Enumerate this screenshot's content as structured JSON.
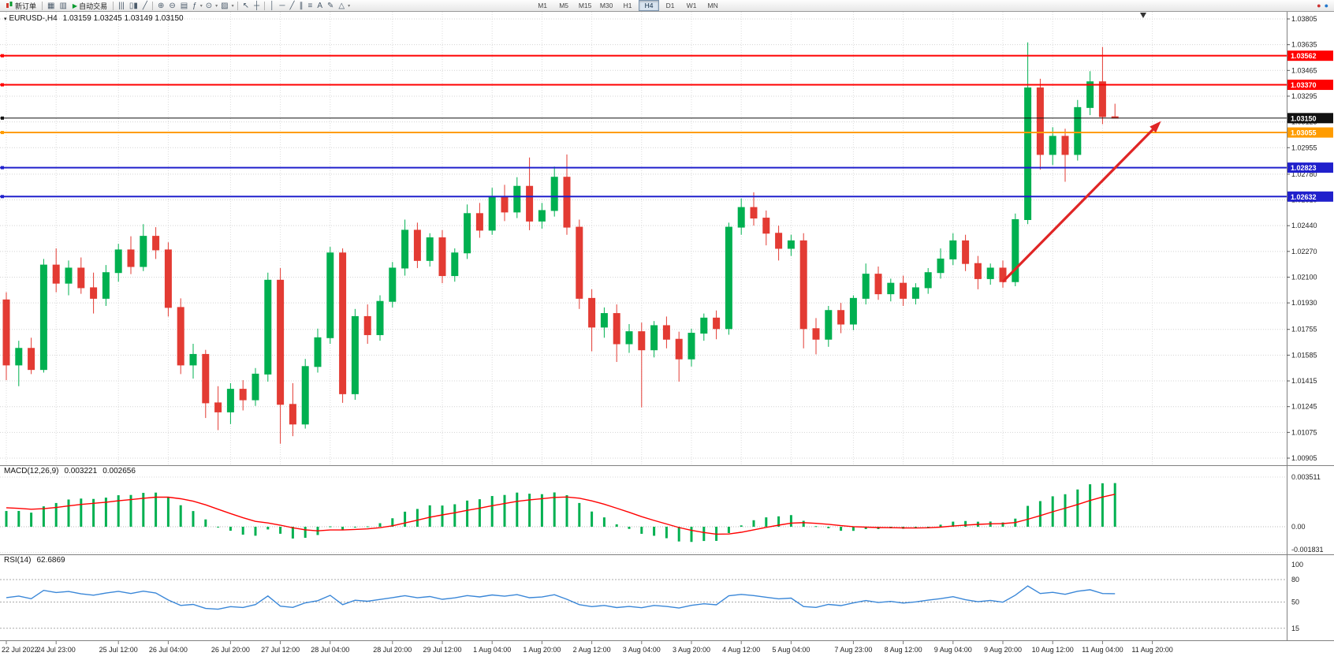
{
  "toolbar": {
    "new_order_label": "新订单",
    "autotrading_label": "自动交易",
    "icon_groups": [
      [
        {
          "name": "charts-grid-icon",
          "glyph": "▦"
        },
        {
          "name": "profiles-icon",
          "glyph": "▥"
        }
      ],
      [
        {
          "name": "bar-chart-icon",
          "glyph": "|||"
        },
        {
          "name": "candlestick-chart-icon",
          "glyph": "▯▮"
        },
        {
          "name": "line-chart-icon",
          "glyph": "╱"
        }
      ],
      [
        {
          "name": "zoom-in-icon",
          "glyph": "⊕"
        },
        {
          "name": "zoom-out-icon",
          "glyph": "⊖"
        },
        {
          "name": "tile-windows-icon",
          "glyph": "▤"
        },
        {
          "name": "indicators-icon",
          "glyph": "ƒ",
          "dd": true
        },
        {
          "name": "periods-icon",
          "glyph": "⊙",
          "dd": true
        },
        {
          "name": "templates-icon",
          "glyph": "▨",
          "dd": true
        }
      ],
      [
        {
          "name": "cursor-icon",
          "glyph": "↖"
        },
        {
          "name": "crosshair-icon",
          "glyph": "┼"
        }
      ],
      [
        {
          "name": "vertical-line-icon",
          "glyph": "│"
        },
        {
          "name": "horizontal-line-icon",
          "glyph": "─"
        },
        {
          "name": "trendline-icon",
          "glyph": "╱"
        },
        {
          "name": "channel-icon",
          "glyph": "∥"
        },
        {
          "name": "fibonacci-icon",
          "glyph": "≡"
        },
        {
          "name": "text-icon",
          "glyph": "A"
        },
        {
          "name": "label-icon",
          "glyph": "✎"
        },
        {
          "name": "shapes-icon",
          "glyph": "△",
          "dd": true
        }
      ]
    ],
    "timeframes": [
      "M1",
      "M5",
      "M15",
      "M30",
      "H1",
      "H4",
      "D1",
      "W1",
      "MN"
    ],
    "active_timeframe": "H4",
    "right_icons": [
      {
        "name": "alerts-icon",
        "glyph": "●",
        "color": "#cc3333"
      },
      {
        "name": "community-icon",
        "glyph": "●",
        "color": "#2277cc"
      }
    ]
  },
  "chart_data": {
    "type": "candlestick",
    "symbol_title": "EURUSD-,H4",
    "ohlc_text": "1.03159 1.03245 1.03149 1.03150",
    "up_color": "#00b050",
    "down_color": "#e33b33",
    "ylim": [
      1.00905,
      1.03805
    ],
    "y_ticks": [
      "1.03805",
      "1.03635",
      "1.03465",
      "1.03295",
      "1.03125",
      "1.02955",
      "1.02780",
      "1.02610",
      "1.02440",
      "1.02270",
      "1.02100",
      "1.01930",
      "1.01755",
      "1.01585",
      "1.01415",
      "1.01245",
      "1.01075",
      "1.00905"
    ],
    "x_labels": [
      {
        "bar": 0,
        "label": "22 Jul 2022"
      },
      {
        "bar": 4,
        "label": "24 Jul 23:00"
      },
      {
        "bar": 9,
        "label": "25 Jul 12:00"
      },
      {
        "bar": 13,
        "label": "26 Jul 04:00"
      },
      {
        "bar": 18,
        "label": "26 Jul 20:00"
      },
      {
        "bar": 22,
        "label": "27 Jul 12:00"
      },
      {
        "bar": 26,
        "label": "28 Jul 04:00"
      },
      {
        "bar": 31,
        "label": "28 Jul 20:00"
      },
      {
        "bar": 35,
        "label": "29 Jul 12:00"
      },
      {
        "bar": 39,
        "label": "1 Aug 04:00"
      },
      {
        "bar": 43,
        "label": "1 Aug 20:00"
      },
      {
        "bar": 47,
        "label": "2 Aug 12:00"
      },
      {
        "bar": 51,
        "label": "3 Aug 04:00"
      },
      {
        "bar": 55,
        "label": "3 Aug 20:00"
      },
      {
        "bar": 59,
        "label": "4 Aug 12:00"
      },
      {
        "bar": 63,
        "label": "5 Aug 04:00"
      },
      {
        "bar": 68,
        "label": "7 Aug 23:00"
      },
      {
        "bar": 72,
        "label": "8 Aug 12:00"
      },
      {
        "bar": 76,
        "label": "9 Aug 04:00"
      },
      {
        "bar": 80,
        "label": "9 Aug 20:00"
      },
      {
        "bar": 84,
        "label": "10 Aug 12:00"
      },
      {
        "bar": 88,
        "label": "11 Aug 04:00"
      },
      {
        "bar": 92,
        "label": "11 Aug 20:00"
      }
    ],
    "candles": [
      [
        1.0195,
        1.02,
        1.0142,
        1.0152
      ],
      [
        1.0152,
        1.0168,
        1.0138,
        1.0163
      ],
      [
        1.0163,
        1.017,
        1.0146,
        1.0149
      ],
      [
        1.0149,
        1.0222,
        1.0147,
        1.0218
      ],
      [
        1.0218,
        1.0229,
        1.02,
        1.0206
      ],
      [
        1.0206,
        1.0221,
        1.0198,
        1.0216
      ],
      [
        1.0216,
        1.0223,
        1.0199,
        1.0203
      ],
      [
        1.0203,
        1.0213,
        1.0186,
        1.0196
      ],
      [
        1.0196,
        1.0218,
        1.0191,
        1.0213
      ],
      [
        1.0213,
        1.0232,
        1.0207,
        1.0228
      ],
      [
        1.0228,
        1.0237,
        1.0212,
        1.0217
      ],
      [
        1.0217,
        1.0245,
        1.0214,
        1.0237
      ],
      [
        1.0237,
        1.0243,
        1.0222,
        1.0228
      ],
      [
        1.0228,
        1.0233,
        1.0184,
        1.019
      ],
      [
        1.019,
        1.0196,
        1.0146,
        1.0152
      ],
      [
        1.0152,
        1.0166,
        1.0143,
        1.0159
      ],
      [
        1.0159,
        1.0162,
        1.0117,
        1.0127
      ],
      [
        1.0127,
        1.0138,
        1.0109,
        1.0121
      ],
      [
        1.0121,
        1.014,
        1.0113,
        1.0136
      ],
      [
        1.0136,
        1.0142,
        1.0122,
        1.0129
      ],
      [
        1.0129,
        1.015,
        1.0125,
        1.0146
      ],
      [
        1.0146,
        1.0213,
        1.0141,
        1.0208
      ],
      [
        1.0208,
        1.0216,
        1.01,
        1.0126
      ],
      [
        1.0126,
        1.014,
        1.0105,
        1.0113
      ],
      [
        1.0113,
        1.0156,
        1.011,
        1.0151
      ],
      [
        1.0151,
        1.0176,
        1.0147,
        1.017
      ],
      [
        1.017,
        1.023,
        1.0166,
        1.0226
      ],
      [
        1.0226,
        1.0229,
        1.0127,
        1.0133
      ],
      [
        1.0133,
        1.0189,
        1.0129,
        1.0184
      ],
      [
        1.0184,
        1.0192,
        1.0166,
        1.0172
      ],
      [
        1.0172,
        1.0198,
        1.0168,
        1.0194
      ],
      [
        1.0194,
        1.022,
        1.019,
        1.0216
      ],
      [
        1.0216,
        1.0248,
        1.0211,
        1.0241
      ],
      [
        1.0241,
        1.0246,
        1.0216,
        1.0221
      ],
      [
        1.0221,
        1.0239,
        1.0217,
        1.0236
      ],
      [
        1.0236,
        1.0241,
        1.0206,
        1.0211
      ],
      [
        1.0211,
        1.0229,
        1.0207,
        1.0226
      ],
      [
        1.0226,
        1.0258,
        1.0222,
        1.0252
      ],
      [
        1.0252,
        1.0259,
        1.0236,
        1.0241
      ],
      [
        1.0241,
        1.0269,
        1.0238,
        1.0263
      ],
      [
        1.0263,
        1.0271,
        1.0247,
        1.0253
      ],
      [
        1.0253,
        1.0276,
        1.0249,
        1.027
      ],
      [
        1.027,
        1.0289,
        1.0241,
        1.0247
      ],
      [
        1.0247,
        1.0259,
        1.0242,
        1.0254
      ],
      [
        1.0254,
        1.0283,
        1.025,
        1.0276
      ],
      [
        1.0276,
        1.0291,
        1.0238,
        1.0243
      ],
      [
        1.0243,
        1.0248,
        1.0189,
        1.0196
      ],
      [
        1.0196,
        1.0202,
        1.0161,
        1.0177
      ],
      [
        1.0177,
        1.019,
        1.017,
        1.0186
      ],
      [
        1.0186,
        1.0192,
        1.0154,
        1.0166
      ],
      [
        1.0166,
        1.0179,
        1.016,
        1.0174
      ],
      [
        1.0174,
        1.018,
        1.0124,
        1.0162
      ],
      [
        1.0162,
        1.0181,
        1.0157,
        1.0178
      ],
      [
        1.0178,
        1.0184,
        1.0163,
        1.0169
      ],
      [
        1.0169,
        1.0174,
        1.0141,
        1.0156
      ],
      [
        1.0156,
        1.0176,
        1.0151,
        1.0173
      ],
      [
        1.0173,
        1.0186,
        1.0168,
        1.0183
      ],
      [
        1.0183,
        1.0188,
        1.0169,
        1.0176
      ],
      [
        1.0176,
        1.0246,
        1.0172,
        1.0243
      ],
      [
        1.0243,
        1.0262,
        1.0238,
        1.0256
      ],
      [
        1.0256,
        1.0266,
        1.0244,
        1.0249
      ],
      [
        1.0249,
        1.0254,
        1.0231,
        1.0239
      ],
      [
        1.0239,
        1.0244,
        1.0221,
        1.0229
      ],
      [
        1.0229,
        1.0238,
        1.0224,
        1.0234
      ],
      [
        1.0234,
        1.0239,
        1.0163,
        1.0176
      ],
      [
        1.0176,
        1.0183,
        1.0159,
        1.0169
      ],
      [
        1.0169,
        1.0191,
        1.0164,
        1.0188
      ],
      [
        1.0188,
        1.0193,
        1.0173,
        1.0179
      ],
      [
        1.0179,
        1.0198,
        1.0175,
        1.0196
      ],
      [
        1.0196,
        1.0219,
        1.0192,
        1.0212
      ],
      [
        1.0212,
        1.0217,
        1.0195,
        1.0199
      ],
      [
        1.0199,
        1.0209,
        1.0194,
        1.0206
      ],
      [
        1.0206,
        1.0211,
        1.0191,
        1.0196
      ],
      [
        1.0196,
        1.0206,
        1.0192,
        1.0203
      ],
      [
        1.0203,
        1.0216,
        1.0199,
        1.0213
      ],
      [
        1.0213,
        1.0229,
        1.0209,
        1.0222
      ],
      [
        1.0222,
        1.0239,
        1.0218,
        1.0234
      ],
      [
        1.0234,
        1.0238,
        1.0214,
        1.0219
      ],
      [
        1.0219,
        1.0224,
        1.0202,
        1.0209
      ],
      [
        1.0209,
        1.0219,
        1.0205,
        1.0216
      ],
      [
        1.0216,
        1.0221,
        1.0203,
        1.0207
      ],
      [
        1.0207,
        1.0252,
        1.0204,
        1.0248
      ],
      [
        1.0248,
        1.0365,
        1.0245,
        1.0335
      ],
      [
        1.0335,
        1.0341,
        1.0281,
        1.0291
      ],
      [
        1.0291,
        1.0309,
        1.0284,
        1.0303
      ],
      [
        1.0303,
        1.0308,
        1.0273,
        1.0291
      ],
      [
        1.0291,
        1.0327,
        1.0287,
        1.0322
      ],
      [
        1.0322,
        1.0346,
        1.0317,
        1.0339
      ],
      [
        1.0339,
        1.0362,
        1.0311,
        1.0316
      ],
      [
        1.03159,
        1.03245,
        1.03149,
        1.0315
      ]
    ],
    "levels": [
      {
        "price": 1.03562,
        "label": "1.03562",
        "color": "#ff0000",
        "width": 2
      },
      {
        "price": 1.0337,
        "label": "1.03370",
        "color": "#ff0000",
        "width": 2
      },
      {
        "price": 1.0315,
        "label": "1.03150",
        "color": "#111111",
        "width": 1
      },
      {
        "price": 1.03055,
        "label": "1.03055",
        "color": "#ff9c00",
        "width": 2
      },
      {
        "price": 1.02823,
        "label": "1.02823",
        "color": "#2020cc",
        "width": 2
      },
      {
        "price": 1.02632,
        "label": "1.02632",
        "color": "#2020cc",
        "width": 2
      }
    ],
    "trend_arrow": {
      "from_bar": 80,
      "from_price": 1.0207,
      "to_bar": 92.7,
      "to_price": 1.0313,
      "color": "#e02525"
    },
    "indicators": {
      "macd": {
        "label": "MACD(12,26,9)",
        "value_main": "0.003221",
        "value_signal": "0.002656",
        "axis_ticks": [
          "0.003511",
          "0.00",
          "-0.001831"
        ],
        "histogram_color": "#00b050",
        "signal_color": "#ff0000"
      },
      "rsi": {
        "label": "RSI(14)",
        "value": "62.6869",
        "axis_ticks": [
          "100",
          "80",
          "50",
          "15"
        ],
        "levels": [
          80,
          50,
          15
        ],
        "line_color": "#3a87d8"
      }
    }
  }
}
